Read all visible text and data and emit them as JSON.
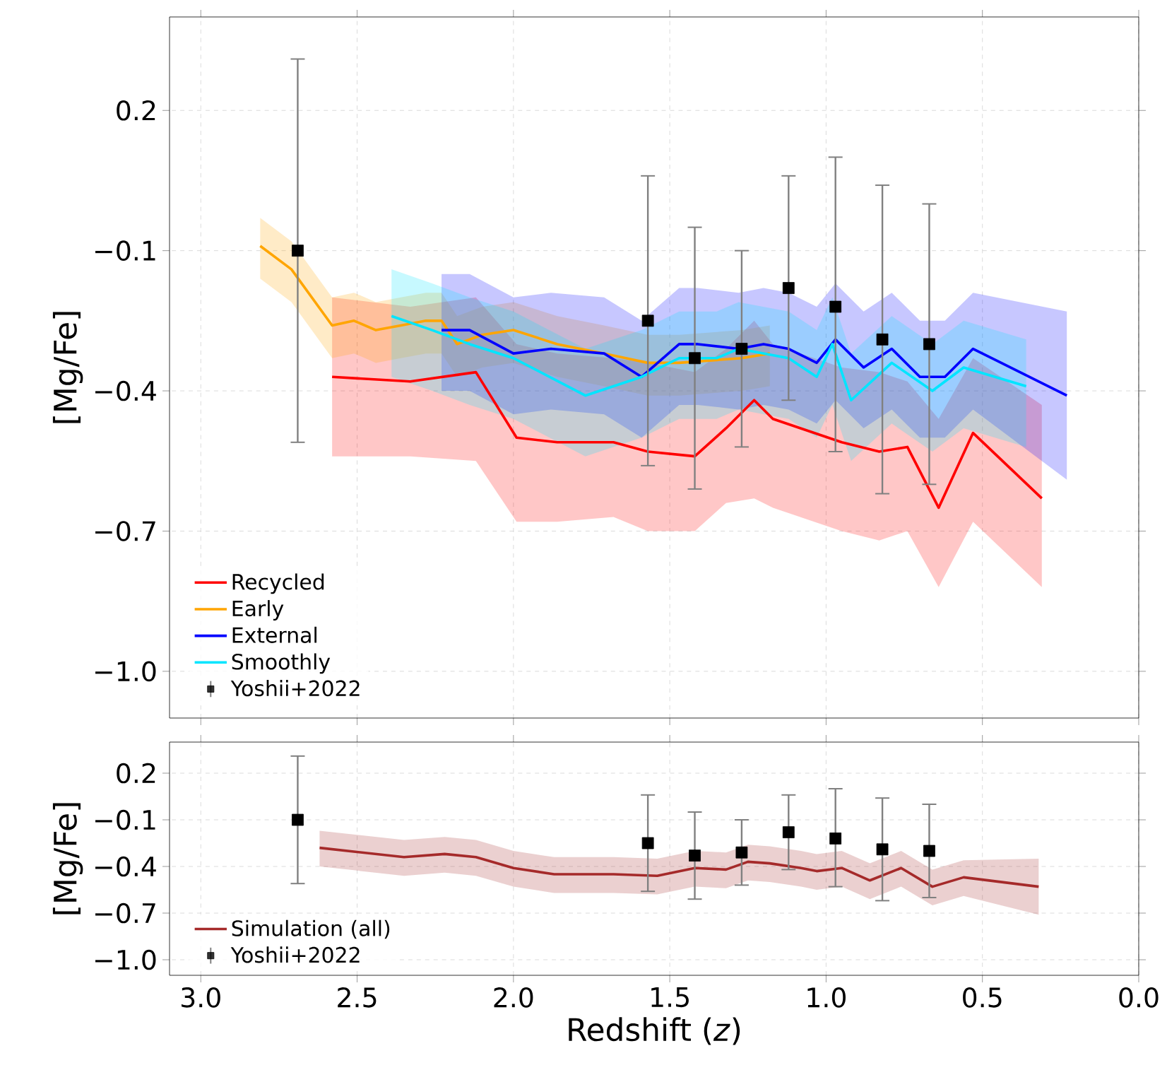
{
  "chart_data": [
    {
      "type": "line",
      "ylabel": "[Mg/Fe]",
      "xlim": [
        3.1,
        0
      ],
      "ylim": [
        -1.1,
        0.4
      ],
      "xticks": [
        3,
        2.5,
        2,
        1.5,
        1,
        0.5,
        0
      ],
      "yticks": [
        {
          "value": 0.2,
          "label": "0.2"
        },
        {
          "value": -0.1,
          "label": "−0.1"
        },
        {
          "value": -0.4,
          "label": "−0.4"
        },
        {
          "value": -0.7,
          "label": "−0.7"
        },
        {
          "value": -1.0,
          "label": "−1.0"
        }
      ],
      "tick_labels": "y",
      "grid": true,
      "legend": "bottom left",
      "series": [
        {
          "name": "Recycled",
          "color": "#ff0000",
          "x": [
            2.58,
            2.33,
            2.12,
            1.99,
            1.86,
            1.68,
            1.57,
            1.42,
            1.32,
            1.23,
            1.17,
            0.95,
            0.83,
            0.74,
            0.64,
            0.53,
            0.31
          ],
          "values": [
            -0.37,
            -0.38,
            -0.36,
            -0.5,
            -0.51,
            -0.51,
            -0.53,
            -0.54,
            -0.48,
            -0.42,
            -0.46,
            -0.51,
            -0.53,
            -0.52,
            -0.65,
            -0.49,
            -0.63
          ],
          "upper": [
            -0.2,
            -0.22,
            -0.2,
            -0.3,
            -0.32,
            -0.33,
            -0.34,
            -0.36,
            -0.31,
            -0.25,
            -0.3,
            -0.35,
            -0.36,
            -0.38,
            -0.46,
            -0.33,
            -0.43
          ],
          "lower": [
            -0.54,
            -0.54,
            -0.55,
            -0.68,
            -0.68,
            -0.67,
            -0.7,
            -0.7,
            -0.64,
            -0.63,
            -0.65,
            -0.7,
            -0.72,
            -0.7,
            -0.82,
            -0.68,
            -0.82
          ]
        },
        {
          "name": "Early",
          "color": "#ffa500",
          "x": [
            2.81,
            2.71,
            2.58,
            2.51,
            2.44,
            2.36,
            2.28,
            2.23,
            2.18,
            2.1,
            2.0,
            1.86,
            1.71,
            1.57,
            1.47,
            1.27,
            1.18
          ],
          "values": [
            -0.09,
            -0.14,
            -0.26,
            -0.25,
            -0.27,
            -0.26,
            -0.25,
            -0.25,
            -0.3,
            -0.28,
            -0.27,
            -0.3,
            -0.32,
            -0.34,
            -0.34,
            -0.33,
            -0.32
          ],
          "upper": [
            -0.03,
            -0.08,
            -0.2,
            -0.19,
            -0.21,
            -0.2,
            -0.19,
            -0.19,
            -0.24,
            -0.22,
            -0.21,
            -0.24,
            -0.26,
            -0.28,
            -0.28,
            -0.27,
            -0.26
          ],
          "lower": [
            -0.16,
            -0.21,
            -0.33,
            -0.32,
            -0.34,
            -0.33,
            -0.32,
            -0.32,
            -0.37,
            -0.35,
            -0.34,
            -0.37,
            -0.39,
            -0.41,
            -0.41,
            -0.4,
            -0.39
          ]
        },
        {
          "name": "External",
          "color": "#0000ff",
          "x": [
            2.23,
            2.14,
            2.0,
            1.88,
            1.71,
            1.59,
            1.47,
            1.41,
            1.28,
            1.2,
            1.12,
            1.03,
            0.97,
            0.88,
            0.79,
            0.7,
            0.62,
            0.53,
            0.23
          ],
          "values": [
            -0.27,
            -0.27,
            -0.32,
            -0.31,
            -0.32,
            -0.37,
            -0.3,
            -0.3,
            -0.31,
            -0.3,
            -0.31,
            -0.34,
            -0.29,
            -0.35,
            -0.31,
            -0.37,
            -0.37,
            -0.31,
            -0.41
          ],
          "upper": [
            -0.15,
            -0.15,
            -0.2,
            -0.19,
            -0.2,
            -0.25,
            -0.18,
            -0.18,
            -0.19,
            -0.18,
            -0.19,
            -0.22,
            -0.17,
            -0.23,
            -0.19,
            -0.25,
            -0.25,
            -0.19,
            -0.23
          ],
          "lower": [
            -0.4,
            -0.4,
            -0.45,
            -0.44,
            -0.45,
            -0.5,
            -0.43,
            -0.43,
            -0.44,
            -0.43,
            -0.44,
            -0.47,
            -0.42,
            -0.48,
            -0.44,
            -0.5,
            -0.5,
            -0.44,
            -0.59
          ]
        },
        {
          "name": "Smoothly",
          "color": "#00e5ff",
          "x": [
            2.39,
            2.26,
            2.14,
            2.0,
            1.77,
            1.59,
            1.47,
            1.35,
            1.28,
            1.12,
            1.03,
            0.98,
            0.92,
            0.79,
            0.66,
            0.56,
            0.36
          ],
          "values": [
            -0.24,
            -0.27,
            -0.3,
            -0.33,
            -0.41,
            -0.37,
            -0.33,
            -0.33,
            -0.31,
            -0.33,
            -0.37,
            -0.3,
            -0.42,
            -0.34,
            -0.4,
            -0.35,
            -0.39
          ],
          "upper": [
            -0.14,
            -0.17,
            -0.2,
            -0.23,
            -0.31,
            -0.27,
            -0.23,
            -0.23,
            -0.21,
            -0.23,
            -0.27,
            -0.2,
            -0.32,
            -0.24,
            -0.3,
            -0.25,
            -0.29
          ],
          "lower": [
            -0.37,
            -0.4,
            -0.43,
            -0.46,
            -0.54,
            -0.5,
            -0.46,
            -0.46,
            -0.44,
            -0.46,
            -0.5,
            -0.43,
            -0.55,
            -0.47,
            -0.53,
            -0.48,
            -0.52
          ]
        },
        {
          "name": "Yoshii+2022",
          "type": "scatter",
          "marker": "square",
          "color": "#000000",
          "x": [
            2.69,
            1.57,
            1.42,
            1.27,
            1.12,
            0.97,
            0.82,
            0.67
          ],
          "values": [
            -0.1,
            -0.25,
            -0.33,
            -0.31,
            -0.18,
            -0.22,
            -0.29,
            -0.3
          ],
          "errors": [
            [
              -0.51,
              0.31
            ],
            [
              -0.56,
              0.06
            ],
            [
              -0.61,
              -0.05
            ],
            [
              -0.52,
              -0.1
            ],
            [
              -0.42,
              0.06
            ],
            [
              -0.53,
              0.1
            ],
            [
              -0.62,
              0.04
            ],
            [
              -0.6,
              0.0
            ]
          ]
        }
      ]
    },
    {
      "type": "line",
      "ylabel": "[Mg/Fe]",
      "xlabel": "Redshift (*z*)",
      "xlim": [
        3.1,
        0
      ],
      "ylim": [
        -1.1,
        0.4
      ],
      "xticks": [
        {
          "value": 3,
          "label": "3.0"
        },
        {
          "value": 2.5,
          "label": "2.5"
        },
        {
          "value": 2,
          "label": "2.0"
        },
        {
          "value": 1.5,
          "label": "1.5"
        },
        {
          "value": 1,
          "label": "1.0"
        },
        {
          "value": 0.5,
          "label": "0.5"
        },
        {
          "value": 0,
          "label": "0.0"
        }
      ],
      "yticks": [
        {
          "value": 0.2,
          "label": "0.2"
        },
        {
          "value": -0.1,
          "label": "−0.1"
        },
        {
          "value": -0.4,
          "label": "−0.4"
        },
        {
          "value": -0.7,
          "label": "−0.7"
        },
        {
          "value": -1.0,
          "label": "−1.0"
        }
      ],
      "grid": true,
      "legend": "bottom left",
      "series": [
        {
          "name": "Simulation (all)",
          "color": "#a52a2a",
          "x": [
            2.62,
            2.35,
            2.22,
            2.12,
            2.0,
            1.87,
            1.68,
            1.54,
            1.42,
            1.32,
            1.25,
            1.18,
            1.08,
            1.03,
            0.95,
            0.86,
            0.76,
            0.66,
            0.56,
            0.32
          ],
          "values": [
            -0.28,
            -0.34,
            -0.32,
            -0.34,
            -0.41,
            -0.45,
            -0.45,
            -0.46,
            -0.41,
            -0.42,
            -0.37,
            -0.38,
            -0.41,
            -0.43,
            -0.41,
            -0.49,
            -0.41,
            -0.53,
            -0.47,
            -0.53
          ],
          "upper": [
            -0.17,
            -0.23,
            -0.21,
            -0.23,
            -0.3,
            -0.34,
            -0.34,
            -0.35,
            -0.3,
            -0.31,
            -0.26,
            -0.27,
            -0.3,
            -0.32,
            -0.3,
            -0.38,
            -0.3,
            -0.42,
            -0.36,
            -0.35
          ],
          "lower": [
            -0.4,
            -0.46,
            -0.44,
            -0.46,
            -0.53,
            -0.57,
            -0.57,
            -0.58,
            -0.53,
            -0.54,
            -0.49,
            -0.5,
            -0.53,
            -0.55,
            -0.53,
            -0.61,
            -0.53,
            -0.65,
            -0.59,
            -0.71
          ]
        },
        {
          "name": "Yoshii+2022",
          "type": "scatter",
          "marker": "square",
          "color": "#000000",
          "x": [
            2.69,
            1.57,
            1.42,
            1.27,
            1.12,
            0.97,
            0.82,
            0.67
          ],
          "values": [
            -0.1,
            -0.25,
            -0.33,
            -0.31,
            -0.18,
            -0.22,
            -0.29,
            -0.3
          ],
          "errors": [
            [
              -0.51,
              0.31
            ],
            [
              -0.56,
              0.06
            ],
            [
              -0.61,
              -0.05
            ],
            [
              -0.52,
              -0.1
            ],
            [
              -0.42,
              0.06
            ],
            [
              -0.53,
              0.1
            ],
            [
              -0.62,
              0.04
            ],
            [
              -0.6,
              0.0
            ]
          ]
        }
      ]
    }
  ]
}
